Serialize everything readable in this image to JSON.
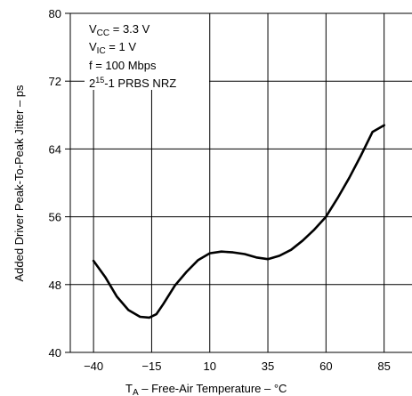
{
  "chart_data": {
    "type": "line",
    "xlabel": {
      "prefix": "T",
      "sub": "A",
      "rest": " – Free-Air Temperature –   °C"
    },
    "ylabel": "Added Driver Peak-To-Peak Jitter – ps",
    "xlim": [
      -50,
      97
    ],
    "ylim": [
      40,
      80
    ],
    "xticks": [
      -40,
      -15,
      10,
      35,
      60,
      85
    ],
    "xtick_labels": [
      "−40",
      "−15",
      "10",
      "35",
      "60",
      "85"
    ],
    "yticks": [
      40,
      48,
      56,
      64,
      72,
      80
    ],
    "ytick_labels": [
      "40",
      "48",
      "56",
      "64",
      "72",
      "80"
    ],
    "grid": true,
    "annotations": [
      {
        "main": "V",
        "sub": "CC",
        "rest": " = 3.3 V"
      },
      {
        "main": "V",
        "sub": "IC",
        "rest": "  = 1 V"
      },
      {
        "main": "f = 100 Mbps"
      },
      {
        "main": "2",
        "sup": "15",
        "rest": "-1 PRBS NRZ"
      }
    ],
    "series": [
      {
        "color": "#000000",
        "x": [
          -40,
          -35,
          -30,
          -25,
          -20,
          -16,
          -13,
          -10,
          -5,
          0,
          5,
          10,
          15,
          20,
          25,
          30,
          35,
          40,
          45,
          50,
          55,
          60,
          65,
          70,
          75,
          80,
          85
        ],
        "y": [
          50.8,
          48.9,
          46.6,
          45.0,
          44.2,
          44.1,
          44.5,
          45.7,
          47.9,
          49.5,
          50.9,
          51.7,
          51.9,
          51.8,
          51.6,
          51.2,
          51.0,
          51.4,
          52.1,
          53.2,
          54.5,
          56.0,
          58.2,
          60.6,
          63.2,
          66.0,
          66.8
        ]
      }
    ]
  }
}
